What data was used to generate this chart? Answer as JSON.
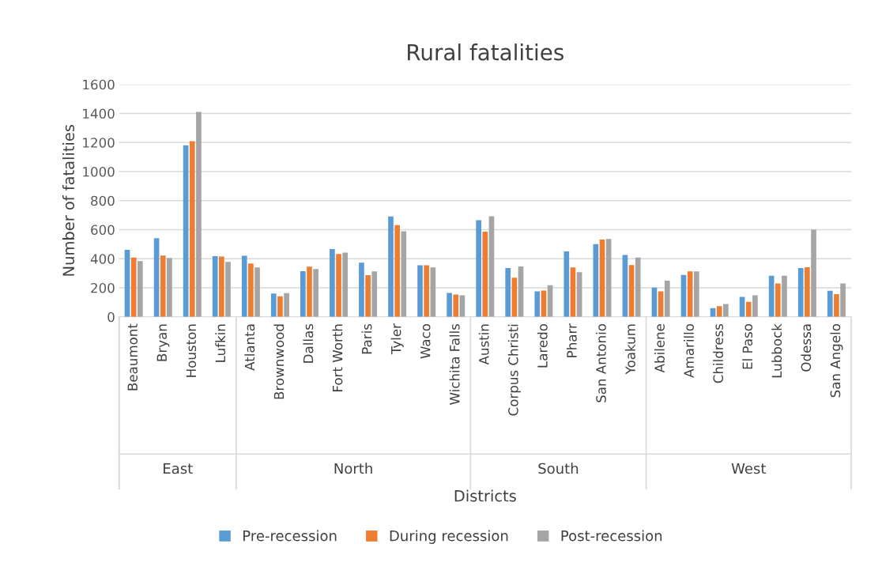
{
  "chart_data": {
    "type": "bar",
    "title": "Rural fatalities",
    "xlabel": "Districts",
    "ylabel": "Number of fatalities",
    "categories": [
      "Beaumont",
      "Bryan",
      "Houston",
      "Lufkin",
      "Atlanta",
      "Brownwood",
      "Dallas",
      "Fort Worth",
      "Paris",
      "Tyler",
      "Waco",
      "Wichita Falls",
      "Austin",
      "Corpus Christi",
      "Laredo",
      "Pharr",
      "San Antonio",
      "Yoakum",
      "Abilene",
      "Amarillo",
      "Childress",
      "El Paso",
      "Lubbock",
      "Odessa",
      "San Angelo"
    ],
    "series": [
      {
        "name": "Pre-recession",
        "color": "#5b9bd5",
        "values": [
          461,
          541,
          1181,
          417,
          420,
          161,
          314,
          466,
          373,
          691,
          355,
          165,
          665,
          336,
          176,
          450,
          501,
          426,
          201,
          289,
          60,
          137,
          283,
          336,
          179
        ]
      },
      {
        "name": "During recession",
        "color": "#ed7d31",
        "values": [
          408,
          422,
          1210,
          415,
          367,
          141,
          346,
          433,
          287,
          631,
          355,
          154,
          587,
          269,
          181,
          340,
          532,
          356,
          176,
          313,
          73,
          104,
          230,
          342,
          157
        ]
      },
      {
        "name": "Post-recession",
        "color": "#a5a5a5",
        "values": [
          384,
          406,
          1411,
          378,
          340,
          163,
          329,
          442,
          313,
          589,
          340,
          148,
          693,
          347,
          218,
          307,
          536,
          408,
          249,
          313,
          88,
          148,
          283,
          600,
          230
        ]
      }
    ],
    "ylim": [
      0,
      1600
    ],
    "yticks": [
      0,
      200,
      400,
      600,
      800,
      1000,
      1200,
      1400,
      1600
    ],
    "grid": "y",
    "legend": "bottom",
    "annotations": [
      "East",
      "North",
      "South",
      "West"
    ]
  }
}
